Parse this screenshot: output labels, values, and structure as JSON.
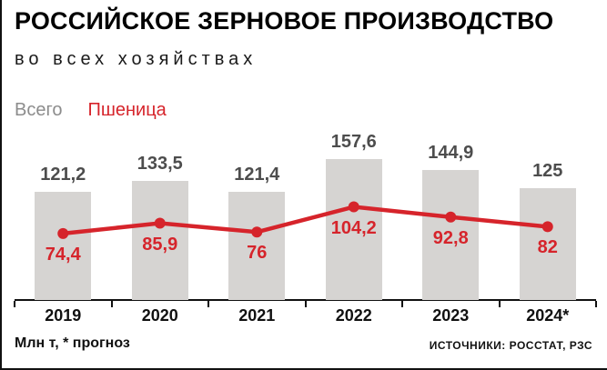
{
  "header": {
    "title": "РОССИЙСКОЕ ЗЕРНОВОЕ ПРОИЗВОДСТВО",
    "subtitle": "во всех хозяйствах"
  },
  "footer": {
    "units_note": "Млн т, * прогноз",
    "sources": "ИСТОЧНИКИ: РОССТАТ, РЗС"
  },
  "colors": {
    "bar": "#d6d4d2",
    "line": "#d6242b",
    "bar_label": "#4d4d4d",
    "axis": "#111111",
    "legend_total": "#8c8c8c"
  },
  "chart_data": {
    "type": "bar",
    "title": "РОССИЙСКОЕ ЗЕРНОВОЕ ПРОИЗВОДСТВО",
    "subtitle": "во всех хозяйствах",
    "categories": [
      "2019",
      "2020",
      "2021",
      "2022",
      "2023",
      "2024*"
    ],
    "series": [
      {
        "name": "Всего",
        "type": "bar",
        "values": [
          121.2,
          133.5,
          121.4,
          157.6,
          144.9,
          125
        ],
        "labels": [
          "121,2",
          "133,5",
          "121,4",
          "157,6",
          "144,9",
          "125"
        ]
      },
      {
        "name": "Пшеница",
        "type": "line",
        "values": [
          74.4,
          85.9,
          76,
          104.2,
          92.8,
          82
        ],
        "labels": [
          "74,4",
          "85,9",
          "76",
          "104,2",
          "92,8",
          "82"
        ]
      }
    ],
    "ylabel": "Млн т",
    "ylim": [
      0,
      160
    ],
    "grid": false,
    "legend_position": "top-left",
    "footnote": "* прогноз"
  }
}
